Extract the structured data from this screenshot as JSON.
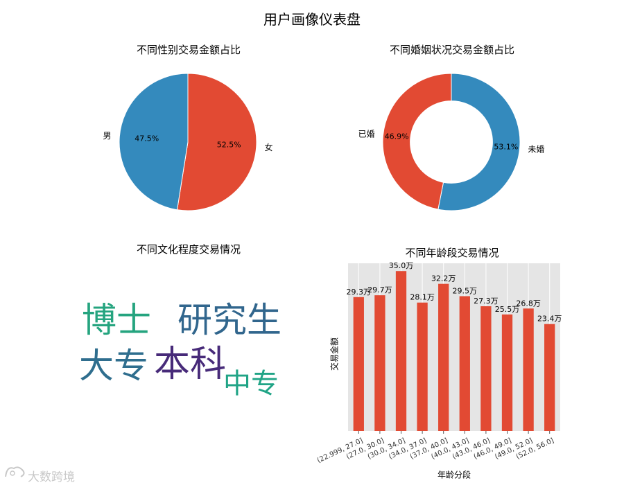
{
  "suptitle": "用户画像仪表盘",
  "panels": {
    "gender_title": "不同性别交易金额占比",
    "marital_title": "不同婚姻状况交易金额占比",
    "education_title": "不同文化程度交易情况",
    "age_title": "不同年龄段交易情况"
  },
  "colors": {
    "blue": "#348ABD",
    "red": "#E24A33",
    "axes_bg": "#E5E5E5"
  },
  "wordcloud": [
    {
      "word": "博士",
      "color": "#25a47f"
    },
    {
      "word": "研究生",
      "color": "#31668d"
    },
    {
      "word": "大专",
      "color": "#2f6e8e"
    },
    {
      "word": "本科",
      "color": "#472a79"
    },
    {
      "word": "中专",
      "color": "#20a486"
    }
  ],
  "watermark": "大数跨境",
  "chart_data": [
    {
      "type": "pie",
      "title": "不同性别交易金额占比",
      "labels": [
        "女",
        "男"
      ],
      "values": [
        52.5,
        47.5
      ],
      "autopct": [
        "52.5%",
        "47.5%"
      ],
      "colors": [
        "#E24A33",
        "#348ABD"
      ]
    },
    {
      "type": "pie",
      "title": "不同婚姻状况交易金额占比",
      "donut": true,
      "labels": [
        "未婚",
        "已婚"
      ],
      "values": [
        53.1,
        46.9
      ],
      "autopct": [
        "53.1%",
        "46.9%"
      ],
      "colors": [
        "#348ABD",
        "#E24A33"
      ]
    },
    {
      "type": "bar",
      "title": "不同年龄段交易情况",
      "xlabel": "年龄分段",
      "ylabel": "交易金额",
      "categories": [
        "(22.999, 27.0]",
        "(27.0, 30.0]",
        "(30.0, 34.0]",
        "(34.0, 37.0]",
        "(37.0, 40.0]",
        "(40.0, 43.0]",
        "(43.0, 46.0]",
        "(46.0, 49.0]",
        "(49.0, 52.0]",
        "(52.0, 56.0]"
      ],
      "values": [
        29.3,
        29.7,
        35.0,
        28.1,
        32.2,
        29.5,
        27.3,
        25.5,
        26.8,
        23.4
      ],
      "value_labels": [
        "29.3万",
        "29.7万",
        "35.0万",
        "28.1万",
        "32.2万",
        "29.5万",
        "27.3万",
        "25.5万",
        "26.8万",
        "23.4万"
      ],
      "unit": "万",
      "ylim": [
        0,
        36.7
      ],
      "grid": true,
      "color": "#E24A33"
    }
  ]
}
